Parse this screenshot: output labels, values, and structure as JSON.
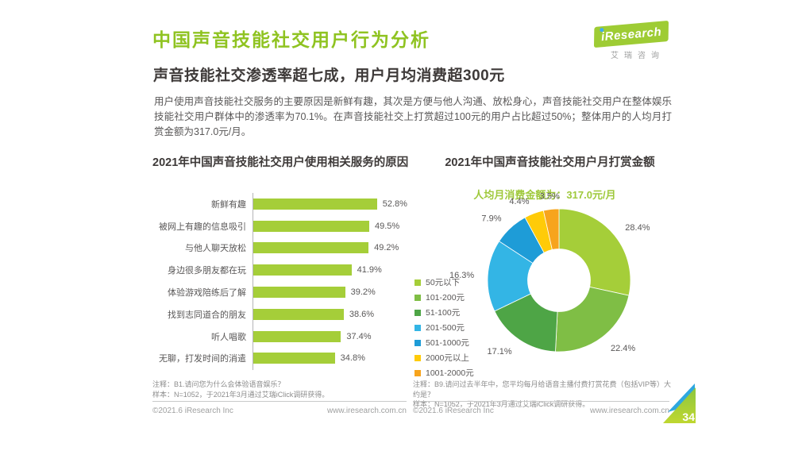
{
  "header": {
    "title": "中国声音技能社交用户行为分析",
    "subtitle": "声音技能社交渗透率超七成，用户月均消费超300元",
    "body_paragraph": "用户使用声音技能社交服务的主要原因是新鲜有趣，其次是方便与他人沟通、放松身心，声音技能社交用户在整体娱乐技能社交用户群体中的渗透率为70.1%。在声音技能社交上打赏超过100元的用户占比超过50%；整体用户的人均月打赏金额为317.0元/月。",
    "logo": {
      "brand_i": "i",
      "brand_rest": "Research",
      "brand_full": "iResearch",
      "brand_cn": "艾瑞咨询"
    }
  },
  "left_panel": {
    "chart_title": "2021年中国声音技能社交用户使用相关服务的原因",
    "note_line1": "注释：B1.请问您为什么会体验语音娱乐？",
    "note_line2": "样本：N=1052，于2021年3月通过艾瑞iClick调研获得。",
    "footer_left": "©2021.6 iResearch Inc",
    "footer_right": "www.iresearch.com.cn"
  },
  "right_panel": {
    "chart_title": "2021年中国声音技能社交用户月打赏金额",
    "annotation": "人均月消费金额为：317.0元/月",
    "note_line1": "注释：B9.请问过去半年中，您平均每月给语音主播付费打赏花费（包括VIP等）大约是？",
    "note_line2": "样本：N=1052，于2021年3月通过艾瑞iClick调研获得。",
    "footer_left": "©2021.6 iResearch Inc",
    "footer_right": "www.iresearch.com.cn",
    "page_number": "34"
  },
  "colors": {
    "brand_green": "#8FC321",
    "bar_green": "#A5CE39",
    "annotation_green": "#9FC93C",
    "axis_gray": "#B5B5B6",
    "badge_blue": "#2EA7E0",
    "badge_green_top": "#8CC63F",
    "badge_green_bottom": "#BFD730"
  },
  "chart_data": [
    {
      "type": "bar",
      "orientation": "horizontal",
      "title": "2021年中国声音技能社交用户使用相关服务的原因",
      "categories": [
        "新鲜有趣",
        "被网上有趣的信息吸引",
        "与他人聊天放松",
        "身边很多朋友都在玩",
        "体验游戏陪练后了解",
        "找到志同道合的朋友",
        "听人唱歌",
        "无聊，打发时间的消遣"
      ],
      "values": [
        52.8,
        49.5,
        49.2,
        41.9,
        39.2,
        38.6,
        37.4,
        34.8
      ],
      "unit": "%",
      "xlim": [
        0,
        60
      ],
      "grid": false,
      "bar_color": "#A5CE39"
    },
    {
      "type": "pie",
      "donut": true,
      "title": "2021年中国声音技能社交用户月打赏金额",
      "annotation": "人均月消费金额为：317.0元/月",
      "start_angle_deg": 0,
      "direction": "clockwise",
      "legend_position": "left",
      "slices": [
        {
          "label": "50元以下",
          "value": 28.4,
          "color": "#A5CE39"
        },
        {
          "label": "101-200元",
          "value": 22.4,
          "color": "#7FBE45"
        },
        {
          "label": "51-100元",
          "value": 17.1,
          "color": "#4EA546"
        },
        {
          "label": "201-500元",
          "value": 16.3,
          "color": "#33B5E5"
        },
        {
          "label": "501-1000元",
          "value": 7.9,
          "color": "#1E9CD7"
        },
        {
          "label": "2000元以上",
          "value": 4.4,
          "color": "#FFCB08"
        },
        {
          "label": "1001-2000元",
          "value": 3.5,
          "color": "#F7A41D"
        }
      ]
    }
  ]
}
